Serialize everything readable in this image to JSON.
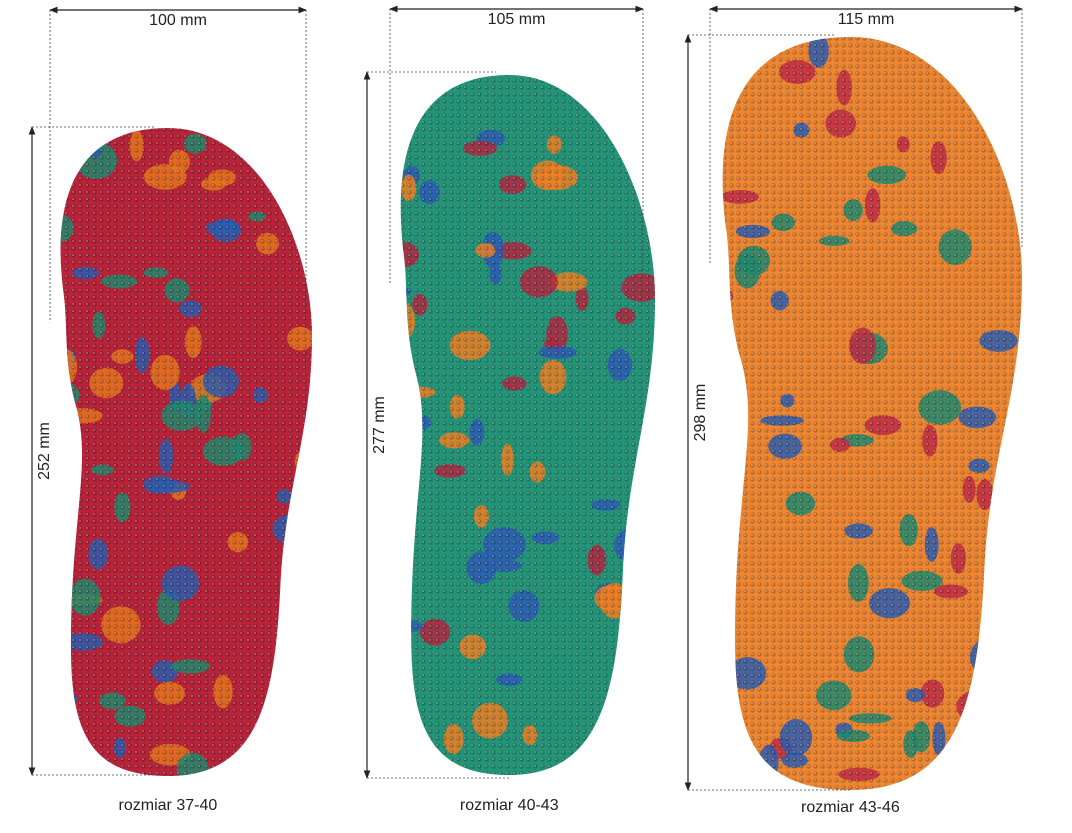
{
  "insoles": [
    {
      "width": "100 mm",
      "length": "252 mm",
      "size": "rozmiar 37-40"
    },
    {
      "width": "105 mm",
      "length": "277 mm",
      "size": "rozmiar 40-43"
    },
    {
      "width": "115 mm",
      "length": "298 mm",
      "size": "rozmiar 43-46"
    }
  ]
}
